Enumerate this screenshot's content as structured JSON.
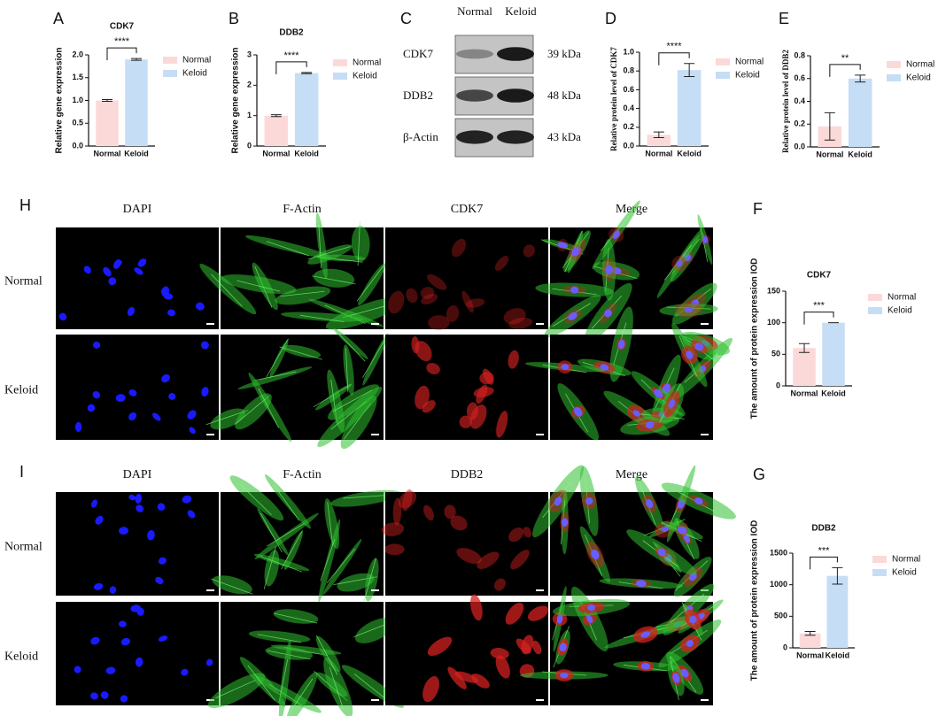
{
  "chart_data": [
    {
      "type": "bar",
      "panel": "A",
      "title": "CDK7",
      "ylabel": "Relative gene expression",
      "categories": [
        "Normal",
        "Keloid"
      ],
      "values": [
        1.0,
        1.9
      ],
      "errors": [
        0.02,
        0.02
      ],
      "colors": [
        "#fcd9d9",
        "#c6ddf6"
      ],
      "ylim": [
        0,
        2.0
      ],
      "yticks": [
        {
          "value": 0,
          "label": "0.0"
        },
        0.5,
        {
          "value": 1,
          "label": "1.0"
        },
        1.5,
        {
          "value": 2,
          "label": "2.0"
        }
      ],
      "significance": "****"
    },
    {
      "type": "bar",
      "panel": "B",
      "title": "DDB2",
      "ylabel": "Relative gene expression",
      "categories": [
        "Normal",
        "Keloid"
      ],
      "values": [
        1.0,
        2.4
      ],
      "errors": [
        0.03,
        0.02
      ],
      "colors": [
        "#fcd9d9",
        "#c6ddf6"
      ],
      "ylim": [
        0,
        3
      ],
      "yticks": [
        0,
        1,
        2,
        3
      ],
      "significance": "****"
    },
    {
      "type": "bar",
      "panel": "D",
      "ylabel": "Relative protein level of CDK7",
      "categories": [
        "Normal",
        "Keloid"
      ],
      "values": [
        0.12,
        0.81
      ],
      "errors": [
        0.03,
        0.07
      ],
      "colors": [
        "#fcd9d9",
        "#c6ddf6"
      ],
      "ylim": [
        0,
        1.0
      ],
      "yticks": [
        {
          "value": 0,
          "label": "0.0"
        },
        0.2,
        0.4,
        0.6,
        0.8,
        {
          "value": 1,
          "label": "1.0"
        }
      ],
      "significance": "****"
    },
    {
      "type": "bar",
      "panel": "E",
      "ylabel": "Relative protein level of DDB2",
      "categories": [
        "Normal",
        "Keloid"
      ],
      "values": [
        0.18,
        0.6
      ],
      "errors": [
        0.12,
        0.03
      ],
      "colors": [
        "#fcd9d9",
        "#c6ddf6"
      ],
      "ylim": [
        0,
        0.8
      ],
      "yticks": [
        {
          "value": 0,
          "label": "0.0"
        },
        0.2,
        0.4,
        0.6,
        0.8
      ],
      "significance": "**"
    },
    {
      "type": "bar",
      "panel": "F",
      "title": "CDK7",
      "ylabel": "The amount of protein expression IOD",
      "categories": [
        "Normal",
        "Keloid"
      ],
      "values": [
        60,
        100
      ],
      "errors": [
        7,
        0
      ],
      "colors": [
        "#fcd9d9",
        "#c6ddf6"
      ],
      "ylim": [
        0,
        150
      ],
      "yticks": [
        0,
        50,
        100,
        150
      ],
      "significance": "***"
    },
    {
      "type": "bar",
      "panel": "G",
      "title": "DDB2",
      "ylabel": "The amount of protein expression IOD",
      "categories": [
        "Normal",
        "Keloid"
      ],
      "values": [
        230,
        1140
      ],
      "errors": [
        30,
        130
      ],
      "colors": [
        "#fcd9d9",
        "#c6ddf6"
      ],
      "ylim": [
        0,
        1500
      ],
      "yticks": [
        0,
        500,
        1000,
        1500
      ],
      "significance": "***"
    }
  ],
  "western_blot": {
    "panel": "C",
    "columns": [
      "Normal",
      "Keloid"
    ],
    "rows": [
      {
        "label": "CDK7",
        "size": "39 kDa"
      },
      {
        "label": "DDB2",
        "size": "48 kDa"
      },
      {
        "label": "β-Actin",
        "size": "43 kDa"
      }
    ]
  },
  "microscopy": [
    {
      "panel": "H",
      "columns": [
        "DAPI",
        "F-Actin",
        "CDK7",
        "Merge"
      ],
      "rows": [
        "Normal",
        "Keloid"
      ]
    },
    {
      "panel": "I",
      "columns": [
        "DAPI",
        "F-Actin",
        "DDB2",
        "Merge"
      ],
      "rows": [
        "Normal",
        "Keloid"
      ]
    }
  ]
}
